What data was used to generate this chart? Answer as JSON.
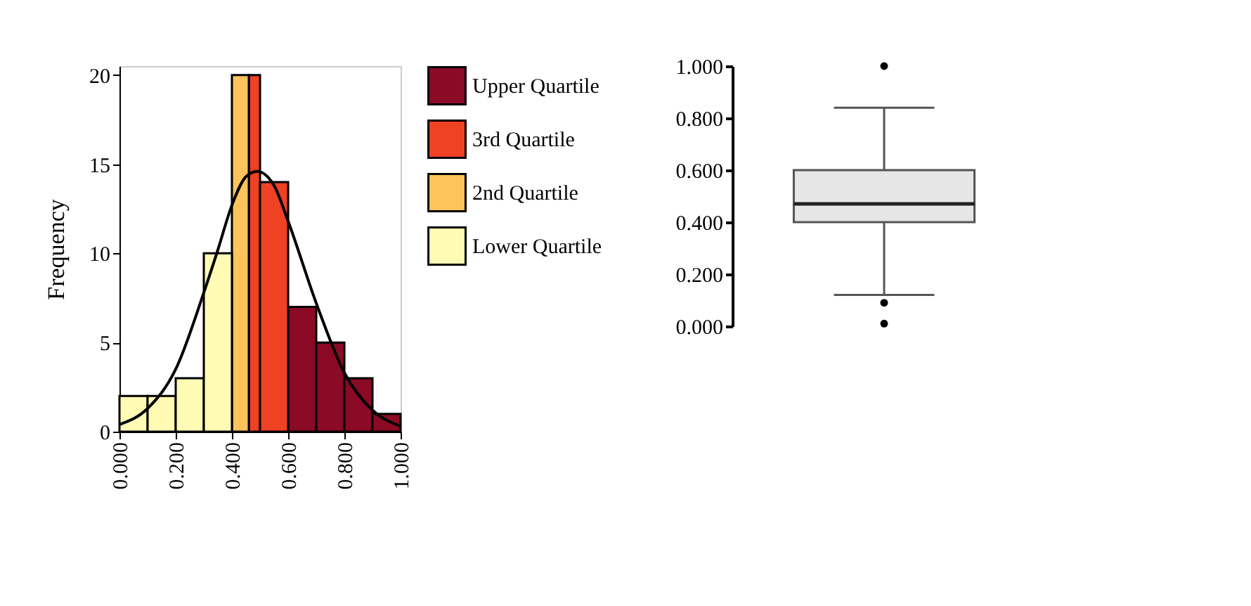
{
  "chart_data": [
    {
      "type": "histogram",
      "ylabel": "Frequency",
      "bins": [
        0,
        0.1,
        0.2,
        0.3,
        0.4,
        0.46,
        0.5,
        0.6,
        0.7,
        0.8,
        0.9,
        1.0
      ],
      "series": [
        {
          "name": "Upper Quartile",
          "color": "#8b0a26",
          "values": [
            null,
            null,
            null,
            null,
            null,
            null,
            null,
            7,
            5,
            3,
            1
          ]
        },
        {
          "name": "3rd Quartile",
          "color": "#ef4124",
          "values": [
            null,
            null,
            null,
            null,
            null,
            20,
            14,
            null,
            null,
            null,
            null
          ]
        },
        {
          "name": "2nd Quartile",
          "color": "#fdc35c",
          "values": [
            null,
            null,
            null,
            null,
            20,
            null,
            null,
            null,
            null,
            null,
            null
          ]
        },
        {
          "name": "Lower Quartile",
          "color": "#fffbb5",
          "values": [
            2,
            2,
            3,
            10,
            null,
            null,
            null,
            null,
            null,
            null,
            null
          ]
        },
        {
          "type": "line",
          "color": "#000000",
          "x": [
            0,
            0.1,
            0.2,
            0.3,
            0.35,
            0.4,
            0.45,
            0.49,
            0.55,
            0.6,
            0.7,
            0.8,
            0.9,
            1.0
          ],
          "values": [
            0.4,
            1.3,
            3.5,
            7.8,
            10.2,
            12.7,
            14.3,
            14.6,
            13.8,
            11.8,
            7.2,
            3.3,
            1.2,
            0.3
          ]
        }
      ],
      "xlim": [
        0,
        1
      ],
      "xticks": [
        {
          "value": 0,
          "label": "0.000"
        },
        {
          "value": 0.2,
          "label": "0.200"
        },
        {
          "value": 0.4,
          "label": "0.400"
        },
        {
          "value": 0.6,
          "label": "0.600"
        },
        {
          "value": 0.8,
          "label": "0.800"
        },
        {
          "value": 1,
          "label": "1.000"
        }
      ],
      "ylim": [
        0,
        20.5
      ],
      "yticks": [
        0,
        5,
        10,
        15,
        20
      ],
      "legend": "right",
      "grid": false
    },
    {
      "type": "box",
      "categories": [
        null
      ],
      "boxes": [
        {
          "low": 0.12,
          "q1": 0.4,
          "median": 0.47,
          "q3": 0.6,
          "high": 0.84,
          "outliers": [
            1.0,
            0.09,
            0.01
          ]
        }
      ],
      "ylim": [
        0,
        1
      ],
      "yticks": [
        {
          "value": 0,
          "label": "0.000"
        },
        {
          "value": 0.2,
          "label": "0.200"
        },
        {
          "value": 0.4,
          "label": "0.400"
        },
        {
          "value": 0.6,
          "label": "0.600"
        },
        {
          "value": 0.8,
          "label": "0.800"
        },
        {
          "value": 1,
          "label": "1.000"
        }
      ],
      "tick_labels": "y",
      "grid": false
    }
  ]
}
